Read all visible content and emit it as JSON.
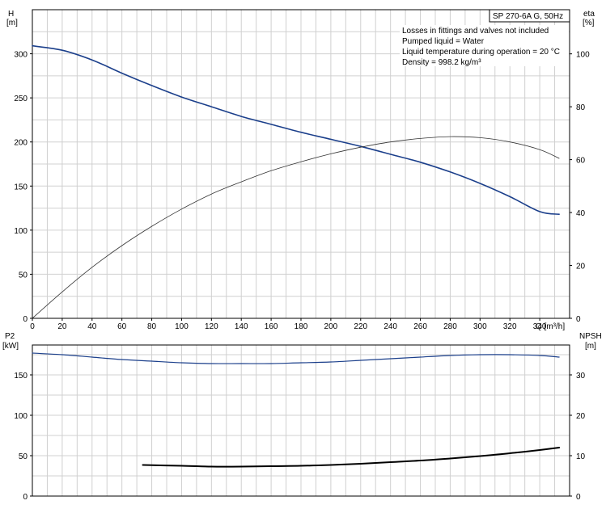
{
  "header": {
    "model": "SP 270-6A G, 50Hz",
    "notes": [
      "Losses in fittings and valves not included",
      "Pumped liquid = Water",
      "Liquid temperature during operation = 20 °C",
      "Density = 998.2 kg/m³"
    ]
  },
  "chart_data": [
    {
      "type": "line",
      "xlabel": "Q [m³/h]",
      "ylabel_left": [
        "H",
        "[m]"
      ],
      "ylabel_right": [
        "eta",
        "[%]"
      ],
      "xlim": [
        0,
        360
      ],
      "x_ticks": [
        0,
        20,
        40,
        60,
        80,
        100,
        120,
        140,
        160,
        180,
        200,
        220,
        240,
        260,
        280,
        300,
        320,
        340
      ],
      "ylim_left": [
        0,
        350
      ],
      "y_ticks_left": [
        0,
        50,
        100,
        150,
        200,
        250,
        300
      ],
      "ylim_right": [
        0,
        116.7
      ],
      "y_ticks_right": [
        0,
        20,
        40,
        60,
        80,
        100
      ],
      "grid": true,
      "series": [
        {
          "axis": "left",
          "color": "#1b3f8b",
          "stroke_width": 1.6,
          "points": [
            [
              0,
              309
            ],
            [
              20,
              304
            ],
            [
              40,
              293
            ],
            [
              60,
              278
            ],
            [
              80,
              264
            ],
            [
              100,
              251
            ],
            [
              120,
              240
            ],
            [
              140,
              229
            ],
            [
              160,
              220
            ],
            [
              180,
              211
            ],
            [
              200,
              203
            ],
            [
              220,
              195
            ],
            [
              240,
              186
            ],
            [
              260,
              177
            ],
            [
              280,
              166
            ],
            [
              300,
              153
            ],
            [
              320,
              138
            ],
            [
              340,
              121
            ],
            [
              353,
              118
            ]
          ]
        },
        {
          "axis": "right",
          "color": "#333333",
          "stroke_width": 0.8,
          "points": [
            [
              0,
              0
            ],
            [
              20,
              10
            ],
            [
              40,
              19.3
            ],
            [
              60,
              27.5
            ],
            [
              80,
              34.8
            ],
            [
              100,
              41.3
            ],
            [
              120,
              47
            ],
            [
              140,
              51.6
            ],
            [
              160,
              55.8
            ],
            [
              180,
              59.2
            ],
            [
              200,
              62.2
            ],
            [
              220,
              64.7
            ],
            [
              240,
              66.7
            ],
            [
              260,
              68
            ],
            [
              280,
              68.7
            ],
            [
              300,
              68.3
            ],
            [
              320,
              66.7
            ],
            [
              340,
              63.8
            ],
            [
              353,
              60.5
            ]
          ]
        }
      ]
    },
    {
      "type": "line",
      "ylabel_left": [
        "P2",
        "[kW]"
      ],
      "ylabel_right": [
        "NPSH",
        "[m]"
      ],
      "xlim": [
        0,
        360
      ],
      "ylim_left": [
        0,
        187
      ],
      "y_ticks_left": [
        0,
        50,
        100,
        150
      ],
      "ylim_right": [
        0,
        37.4
      ],
      "y_ticks_right": [
        0,
        10,
        20,
        30
      ],
      "grid": true,
      "series": [
        {
          "axis": "left",
          "color": "#1b3f8b",
          "stroke_width": 1.2,
          "points": [
            [
              0,
              177
            ],
            [
              20,
              175
            ],
            [
              40,
              172
            ],
            [
              60,
              169
            ],
            [
              80,
              167
            ],
            [
              100,
              165
            ],
            [
              120,
              164
            ],
            [
              140,
              164
            ],
            [
              160,
              164
            ],
            [
              180,
              165
            ],
            [
              200,
              166
            ],
            [
              220,
              168
            ],
            [
              240,
              170
            ],
            [
              260,
              172
            ],
            [
              280,
              174
            ],
            [
              300,
              175
            ],
            [
              320,
              175
            ],
            [
              340,
              174
            ],
            [
              353,
              172
            ]
          ]
        },
        {
          "axis": "right",
          "color": "#000000",
          "stroke_width": 2,
          "points": [
            [
              74,
              7.7
            ],
            [
              100,
              7.5
            ],
            [
              120,
              7.3
            ],
            [
              140,
              7.3
            ],
            [
              160,
              7.4
            ],
            [
              180,
              7.5
            ],
            [
              200,
              7.7
            ],
            [
              220,
              8.0
            ],
            [
              240,
              8.4
            ],
            [
              260,
              8.8
            ],
            [
              280,
              9.3
            ],
            [
              300,
              9.9
            ],
            [
              320,
              10.6
            ],
            [
              340,
              11.4
            ],
            [
              353,
              12.0
            ]
          ]
        }
      ]
    }
  ]
}
